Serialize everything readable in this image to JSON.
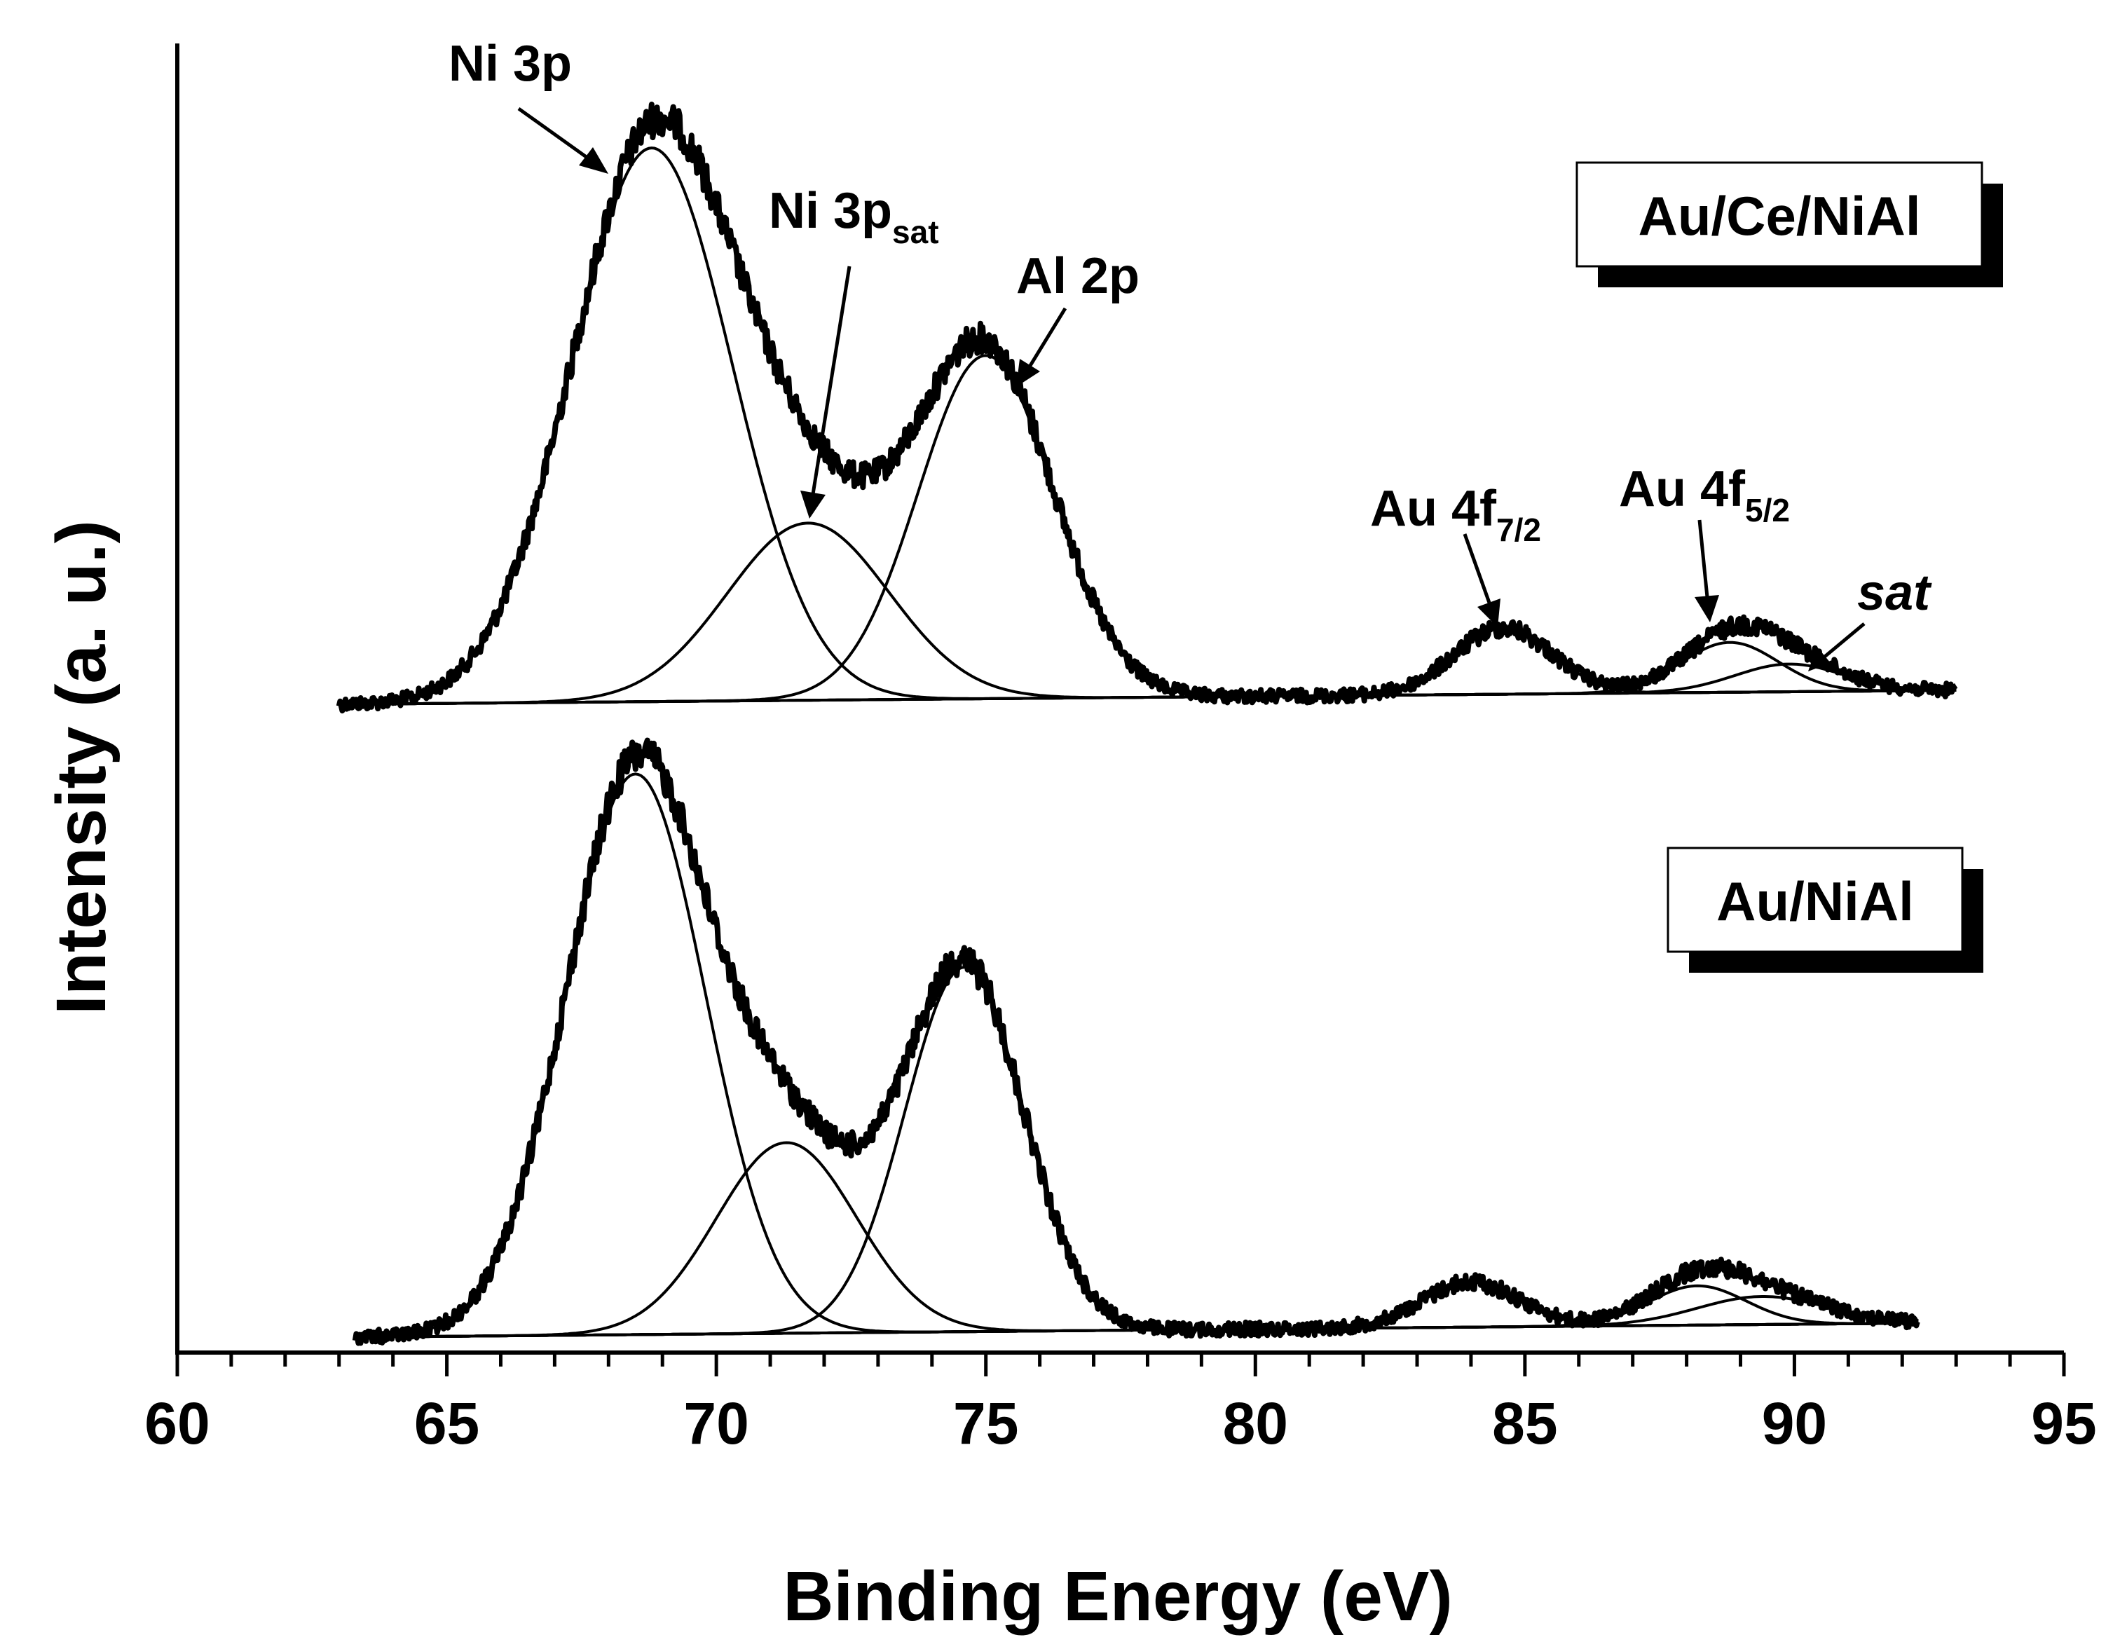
{
  "chart_data": {
    "type": "line",
    "title": "",
    "xlabel": "Binding Energy (eV)",
    "ylabel": "Intensity (a. u.)",
    "xlim": [
      60,
      95
    ],
    "xticks": [
      60,
      65,
      70,
      75,
      80,
      85,
      90,
      95
    ],
    "grid": false,
    "panels": [
      {
        "name": "Au/Ce/NiAl",
        "x_range": [
          63,
          93
        ],
        "peaks": [
          {
            "name": "Ni 3p",
            "center": 68.8,
            "height": 1.0,
            "sigma": 1.5
          },
          {
            "name": "Ni 3p sat",
            "center": 71.7,
            "height": 0.32,
            "sigma": 1.5
          },
          {
            "name": "Al 2p",
            "center": 75.0,
            "height": 0.62,
            "sigma": 1.25
          },
          {
            "name": "Au 4f7/2",
            "center": 84.6,
            "height": 0.12,
            "sigma": 0.9
          },
          {
            "name": "Au 4f5/2",
            "center": 88.8,
            "height": 0.09,
            "sigma": 0.9
          },
          {
            "name": "sat",
            "center": 89.9,
            "height": 0.05,
            "sigma": 1.0
          }
        ]
      },
      {
        "name": "Au/NiAl",
        "x_range": [
          63.3,
          92.3
        ],
        "peaks": [
          {
            "name": "Ni 3p",
            "center": 68.5,
            "height": 1.0,
            "sigma": 1.3
          },
          {
            "name": "Ni 3p sat",
            "center": 71.3,
            "height": 0.34,
            "sigma": 1.3
          },
          {
            "name": "Al 2p",
            "center": 74.6,
            "height": 0.65,
            "sigma": 1.1
          },
          {
            "name": "Au 4f7/2",
            "center": 84.0,
            "height": 0.08,
            "sigma": 0.9
          },
          {
            "name": "Au 4f5/2",
            "center": 88.2,
            "height": 0.07,
            "sigma": 0.9
          },
          {
            "name": "sat",
            "center": 89.4,
            "height": 0.05,
            "sigma": 1.2
          }
        ]
      }
    ],
    "annotations": {
      "ni3p": "Ni 3p",
      "ni3psat_main": "Ni 3p",
      "ni3psat_sub": "sat",
      "al2p": "Al 2p",
      "au4f72_main": "Au 4f",
      "au4f72_sub": "7/2",
      "au4f52_main": "Au 4f",
      "au4f52_sub": "5/2",
      "sat": "sat"
    }
  }
}
